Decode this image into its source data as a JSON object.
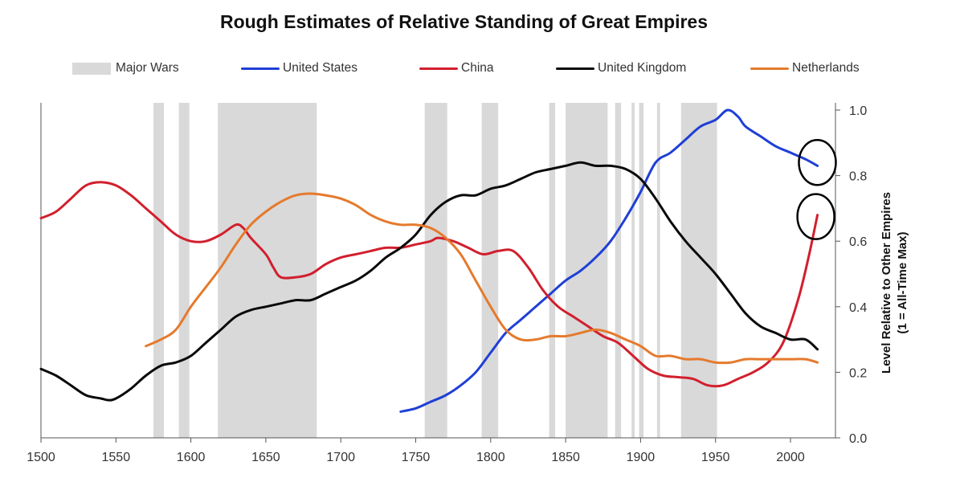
{
  "chart_data": {
    "type": "line",
    "title": "Rough Estimates of Relative Standing of Great Empires",
    "ylabel_line1": "Level Relative to Other Empires",
    "ylabel_line2": "(1 = All-Time Max)",
    "xlim": [
      1500,
      2030
    ],
    "ylim": [
      0,
      1.0
    ],
    "x_ticks": [
      1500,
      1550,
      1600,
      1650,
      1700,
      1750,
      1800,
      1850,
      1900,
      1950,
      2000
    ],
    "y_ticks": [
      "0.0",
      "0.2",
      "0.4",
      "0.6",
      "0.8",
      "1.0"
    ],
    "y_axis_side": "right",
    "grid": false,
    "legend": [
      {
        "label": "Major Wars",
        "kind": "band",
        "color": "#d9d9d9"
      },
      {
        "label": "United States",
        "kind": "line",
        "color": "#1f3fd6"
      },
      {
        "label": "China",
        "kind": "line",
        "color": "#d21f2d"
      },
      {
        "label": "United Kingdom",
        "kind": "line",
        "color": "#0a0a0a"
      },
      {
        "label": "Netherlands",
        "kind": "line",
        "color": "#e57a2d"
      }
    ],
    "major_wars": [
      [
        1575,
        1582
      ],
      [
        1592,
        1599
      ],
      [
        1618,
        1684
      ],
      [
        1756,
        1771
      ],
      [
        1794,
        1805
      ],
      [
        1839,
        1843
      ],
      [
        1850,
        1878
      ],
      [
        1883,
        1887
      ],
      [
        1894,
        1896
      ],
      [
        1899,
        1902
      ],
      [
        1911,
        1913
      ],
      [
        1927,
        1951
      ]
    ],
    "series": [
      {
        "name": "United States",
        "color": "#1f3fd6",
        "points": [
          [
            1740,
            0.08
          ],
          [
            1750,
            0.09
          ],
          [
            1760,
            0.11
          ],
          [
            1770,
            0.13
          ],
          [
            1780,
            0.16
          ],
          [
            1790,
            0.2
          ],
          [
            1800,
            0.26
          ],
          [
            1810,
            0.32
          ],
          [
            1820,
            0.36
          ],
          [
            1830,
            0.4
          ],
          [
            1840,
            0.44
          ],
          [
            1850,
            0.48
          ],
          [
            1860,
            0.51
          ],
          [
            1870,
            0.55
          ],
          [
            1880,
            0.6
          ],
          [
            1890,
            0.67
          ],
          [
            1900,
            0.75
          ],
          [
            1910,
            0.84
          ],
          [
            1920,
            0.87
          ],
          [
            1930,
            0.91
          ],
          [
            1940,
            0.95
          ],
          [
            1950,
            0.97
          ],
          [
            1958,
            1.0
          ],
          [
            1965,
            0.98
          ],
          [
            1970,
            0.95
          ],
          [
            1980,
            0.92
          ],
          [
            1990,
            0.89
          ],
          [
            2000,
            0.87
          ],
          [
            2010,
            0.85
          ],
          [
            2018,
            0.83
          ]
        ]
      },
      {
        "name": "China",
        "color": "#d21f2d",
        "points": [
          [
            1500,
            0.67
          ],
          [
            1510,
            0.69
          ],
          [
            1520,
            0.73
          ],
          [
            1530,
            0.77
          ],
          [
            1540,
            0.78
          ],
          [
            1550,
            0.77
          ],
          [
            1560,
            0.74
          ],
          [
            1570,
            0.7
          ],
          [
            1580,
            0.66
          ],
          [
            1590,
            0.62
          ],
          [
            1600,
            0.6
          ],
          [
            1610,
            0.6
          ],
          [
            1620,
            0.62
          ],
          [
            1630,
            0.65
          ],
          [
            1635,
            0.64
          ],
          [
            1640,
            0.61
          ],
          [
            1650,
            0.56
          ],
          [
            1655,
            0.52
          ],
          [
            1660,
            0.49
          ],
          [
            1670,
            0.49
          ],
          [
            1680,
            0.5
          ],
          [
            1690,
            0.53
          ],
          [
            1700,
            0.55
          ],
          [
            1710,
            0.56
          ],
          [
            1720,
            0.57
          ],
          [
            1730,
            0.58
          ],
          [
            1740,
            0.58
          ],
          [
            1750,
            0.59
          ],
          [
            1760,
            0.6
          ],
          [
            1765,
            0.61
          ],
          [
            1775,
            0.6
          ],
          [
            1785,
            0.58
          ],
          [
            1795,
            0.56
          ],
          [
            1805,
            0.57
          ],
          [
            1815,
            0.57
          ],
          [
            1825,
            0.52
          ],
          [
            1835,
            0.45
          ],
          [
            1845,
            0.4
          ],
          [
            1855,
            0.37
          ],
          [
            1865,
            0.34
          ],
          [
            1875,
            0.31
          ],
          [
            1885,
            0.29
          ],
          [
            1895,
            0.25
          ],
          [
            1905,
            0.21
          ],
          [
            1915,
            0.19
          ],
          [
            1925,
            0.185
          ],
          [
            1935,
            0.18
          ],
          [
            1945,
            0.16
          ],
          [
            1955,
            0.16
          ],
          [
            1965,
            0.18
          ],
          [
            1975,
            0.2
          ],
          [
            1985,
            0.23
          ],
          [
            1995,
            0.29
          ],
          [
            2005,
            0.42
          ],
          [
            2012,
            0.55
          ],
          [
            2018,
            0.68
          ]
        ]
      },
      {
        "name": "United Kingdom",
        "color": "#0a0a0a",
        "points": [
          [
            1500,
            0.21
          ],
          [
            1510,
            0.19
          ],
          [
            1520,
            0.16
          ],
          [
            1530,
            0.13
          ],
          [
            1540,
            0.12
          ],
          [
            1545,
            0.115
          ],
          [
            1550,
            0.12
          ],
          [
            1560,
            0.15
          ],
          [
            1570,
            0.19
          ],
          [
            1580,
            0.22
          ],
          [
            1590,
            0.23
          ],
          [
            1600,
            0.25
          ],
          [
            1610,
            0.29
          ],
          [
            1620,
            0.33
          ],
          [
            1630,
            0.37
          ],
          [
            1640,
            0.39
          ],
          [
            1650,
            0.4
          ],
          [
            1660,
            0.41
          ],
          [
            1670,
            0.42
          ],
          [
            1680,
            0.42
          ],
          [
            1690,
            0.44
          ],
          [
            1700,
            0.46
          ],
          [
            1710,
            0.48
          ],
          [
            1720,
            0.51
          ],
          [
            1730,
            0.55
          ],
          [
            1740,
            0.58
          ],
          [
            1750,
            0.62
          ],
          [
            1760,
            0.68
          ],
          [
            1770,
            0.72
          ],
          [
            1780,
            0.74
          ],
          [
            1790,
            0.74
          ],
          [
            1800,
            0.76
          ],
          [
            1810,
            0.77
          ],
          [
            1820,
            0.79
          ],
          [
            1830,
            0.81
          ],
          [
            1840,
            0.82
          ],
          [
            1850,
            0.83
          ],
          [
            1860,
            0.84
          ],
          [
            1870,
            0.83
          ],
          [
            1880,
            0.83
          ],
          [
            1890,
            0.82
          ],
          [
            1900,
            0.79
          ],
          [
            1910,
            0.73
          ],
          [
            1920,
            0.66
          ],
          [
            1930,
            0.6
          ],
          [
            1940,
            0.55
          ],
          [
            1950,
            0.5
          ],
          [
            1960,
            0.44
          ],
          [
            1970,
            0.38
          ],
          [
            1980,
            0.34
          ],
          [
            1990,
            0.32
          ],
          [
            2000,
            0.3
          ],
          [
            2010,
            0.3
          ],
          [
            2018,
            0.27
          ]
        ]
      },
      {
        "name": "Netherlands",
        "color": "#e57a2d",
        "points": [
          [
            1570,
            0.28
          ],
          [
            1580,
            0.3
          ],
          [
            1590,
            0.33
          ],
          [
            1600,
            0.4
          ],
          [
            1610,
            0.46
          ],
          [
            1620,
            0.52
          ],
          [
            1630,
            0.59
          ],
          [
            1640,
            0.65
          ],
          [
            1650,
            0.69
          ],
          [
            1660,
            0.72
          ],
          [
            1670,
            0.74
          ],
          [
            1680,
            0.745
          ],
          [
            1690,
            0.74
          ],
          [
            1700,
            0.73
          ],
          [
            1710,
            0.71
          ],
          [
            1720,
            0.68
          ],
          [
            1730,
            0.66
          ],
          [
            1740,
            0.65
          ],
          [
            1750,
            0.65
          ],
          [
            1760,
            0.64
          ],
          [
            1770,
            0.61
          ],
          [
            1780,
            0.56
          ],
          [
            1790,
            0.48
          ],
          [
            1800,
            0.4
          ],
          [
            1810,
            0.33
          ],
          [
            1820,
            0.3
          ],
          [
            1830,
            0.3
          ],
          [
            1840,
            0.31
          ],
          [
            1850,
            0.31
          ],
          [
            1860,
            0.32
          ],
          [
            1870,
            0.33
          ],
          [
            1880,
            0.32
          ],
          [
            1890,
            0.3
          ],
          [
            1900,
            0.28
          ],
          [
            1910,
            0.25
          ],
          [
            1920,
            0.25
          ],
          [
            1930,
            0.24
          ],
          [
            1940,
            0.24
          ],
          [
            1950,
            0.23
          ],
          [
            1960,
            0.23
          ],
          [
            1970,
            0.24
          ],
          [
            1980,
            0.24
          ],
          [
            1990,
            0.24
          ],
          [
            2000,
            0.24
          ],
          [
            2010,
            0.24
          ],
          [
            2018,
            0.23
          ]
        ]
      }
    ],
    "annotations": [
      {
        "kind": "circle",
        "x": 2019,
        "y": 0.84,
        "note": "US current level highlighted"
      },
      {
        "kind": "circle",
        "x": 2018,
        "y": 0.675,
        "note": "China current level highlighted"
      }
    ]
  }
}
